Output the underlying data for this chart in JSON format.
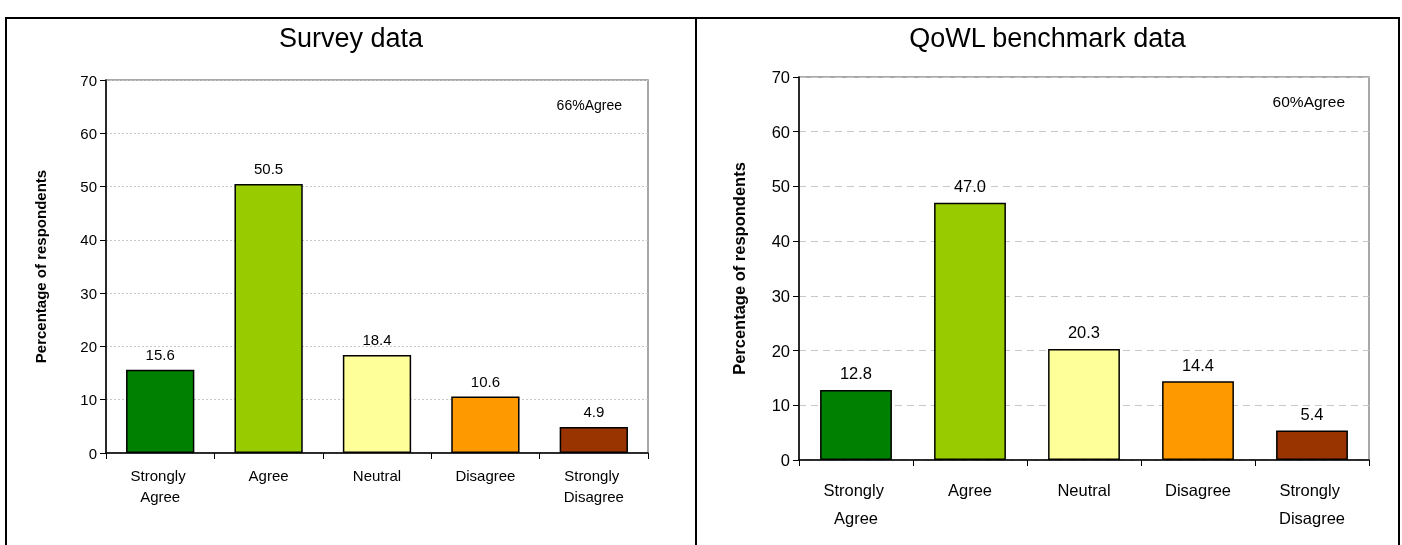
{
  "chart_data": [
    {
      "type": "bar",
      "title": "Survey data",
      "ylabel": "Percentage of respondents",
      "categories": [
        "Strongly Agree",
        "Agree",
        "Neutral",
        "Disagree",
        "Strongly Disagree"
      ],
      "values": [
        15.6,
        50.5,
        18.4,
        10.6,
        4.9
      ],
      "colors": [
        "#008000",
        "#99cc00",
        "#ffff99",
        "#ff9900",
        "#993300"
      ],
      "ylim": [
        0,
        70
      ],
      "yticks": [
        0,
        10,
        20,
        30,
        40,
        50,
        60,
        70
      ],
      "grid": "y",
      "data_labels": true,
      "annotations": [
        "66%Agree"
      ]
    },
    {
      "type": "bar",
      "title": "QoWL benchmark data",
      "ylabel": "Percentage of respondents",
      "categories": [
        "Strongly Agree",
        "Agree",
        "Neutral",
        "Disagree",
        "Strongly Disagree"
      ],
      "values": [
        12.8,
        47.0,
        20.3,
        14.4,
        5.4
      ],
      "value_labels": [
        "12.8",
        "47.0",
        "20.3",
        "14.4",
        "5.4"
      ],
      "colors": [
        "#008000",
        "#99cc00",
        "#ffff99",
        "#ff9900",
        "#993300"
      ],
      "ylim": [
        0,
        70
      ],
      "yticks": [
        0,
        10,
        20,
        30,
        40,
        50,
        60,
        70
      ],
      "grid": "y",
      "annotations": [
        "60%Agree"
      ]
    }
  ]
}
